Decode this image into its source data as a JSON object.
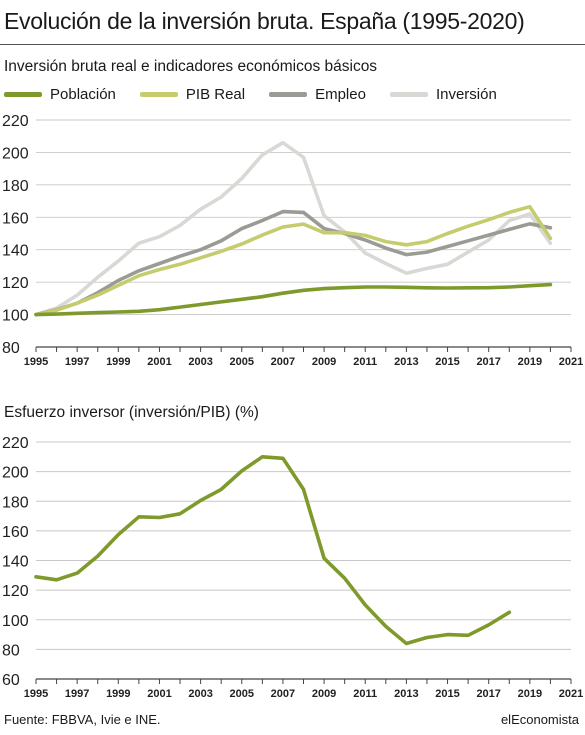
{
  "header": {
    "title": "Evolución de la inversión bruta. España (1995-2020)"
  },
  "footer": {
    "source": "Fuente: FBBVA, Ivie e INE.",
    "brand": "elEconomista"
  },
  "chart_data": [
    {
      "type": "line",
      "title": "Inversión bruta real e indicadores económicos básicos",
      "xlabel": "",
      "ylabel": "",
      "xlim": [
        1995,
        2021
      ],
      "ylim": [
        80,
        220
      ],
      "yticks": [
        80,
        100,
        120,
        140,
        160,
        180,
        200,
        220
      ],
      "xticks": [
        1995,
        1997,
        1999,
        2001,
        2003,
        2005,
        2007,
        2009,
        2011,
        2013,
        2015,
        2017,
        2019,
        2021
      ],
      "grid": "horizontal",
      "legend": "top",
      "x": [
        1995,
        1996,
        1997,
        1998,
        1999,
        2000,
        2001,
        2002,
        2003,
        2004,
        2005,
        2006,
        2007,
        2008,
        2009,
        2010,
        2011,
        2012,
        2013,
        2014,
        2015,
        2016,
        2017,
        2018,
        2019,
        2020
      ],
      "series": [
        {
          "name": "Población",
          "color": "#7f9a2c",
          "values": [
            100,
            100.3,
            100.8,
            101.2,
            101.6,
            102,
            103,
            104.6,
            106.2,
            107.8,
            109.4,
            111,
            113.2,
            115,
            116,
            116.6,
            117,
            117,
            116.8,
            116.5,
            116.4,
            116.5,
            116.6,
            117,
            117.8,
            118.5
          ]
        },
        {
          "name": "PIB Real",
          "color": "#c5cc6e",
          "values": [
            100,
            102.7,
            107,
            112,
            118,
            124,
            127.8,
            131,
            135,
            139,
            143.5,
            149,
            154,
            155.8,
            150.5,
            150.5,
            148.8,
            145,
            143,
            145,
            150,
            154.5,
            158.5,
            163,
            166.5,
            147
          ]
        },
        {
          "name": "Empleo",
          "color": "#9b9b95",
          "values": [
            100,
            103,
            107,
            113.5,
            121,
            127,
            131.5,
            136,
            140,
            145.5,
            153,
            158,
            163.5,
            163,
            153,
            150,
            146,
            141,
            137,
            138.5,
            142,
            145.5,
            149,
            152.5,
            156,
            153.5
          ]
        },
        {
          "name": "Inversión",
          "color": "#d8d8d4",
          "values": [
            100,
            104,
            112,
            123,
            133,
            144,
            148,
            155,
            165,
            172.5,
            184,
            198.5,
            206,
            197,
            161,
            151,
            138,
            131.5,
            125.5,
            128.5,
            131,
            138.5,
            146,
            158,
            162,
            144
          ]
        }
      ]
    },
    {
      "type": "line",
      "title": "Esfuerzo inversor (inversión/PIB) (%)",
      "xlabel": "",
      "ylabel": "",
      "xlim": [
        1995,
        2021
      ],
      "ylim": [
        60,
        220
      ],
      "yticks": [
        60,
        80,
        100,
        120,
        140,
        160,
        180,
        200,
        220
      ],
      "xticks": [
        1995,
        1997,
        1999,
        2001,
        2003,
        2005,
        2007,
        2009,
        2011,
        2013,
        2015,
        2017,
        2019,
        2021
      ],
      "grid": "horizontal",
      "x": [
        1995,
        1996,
        1997,
        1998,
        1999,
        2000,
        2001,
        2002,
        2003,
        2004,
        2005,
        2006,
        2007,
        2008,
        2009,
        2010,
        2011,
        2012,
        2013,
        2014,
        2015,
        2016,
        2017,
        2018,
        2019,
        2020
      ],
      "series": [
        {
          "color": "#7f9a2c",
          "values": [
            129,
            127,
            131.5,
            143,
            157.5,
            169.5,
            169,
            171.5,
            180.5,
            188,
            200.5,
            210,
            209,
            188,
            141.5,
            128,
            110,
            95.5,
            84,
            88,
            90,
            89.5,
            96.5,
            105,
            null,
            null
          ]
        }
      ]
    }
  ]
}
